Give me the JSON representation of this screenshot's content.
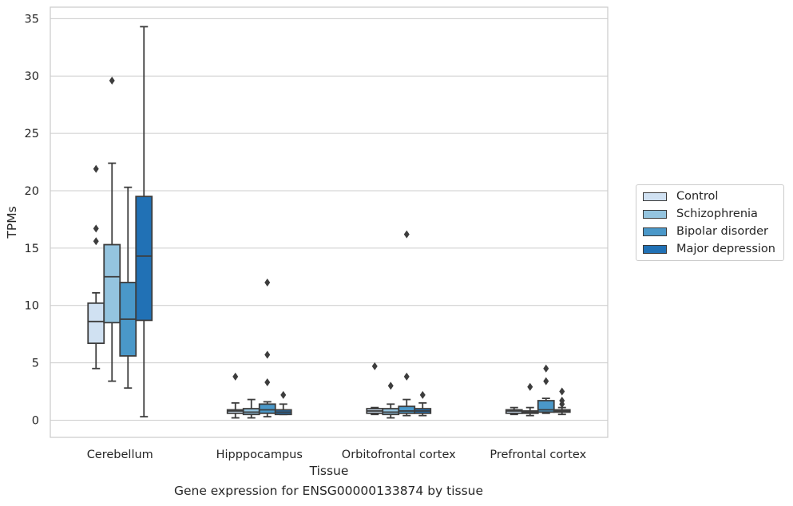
{
  "caption": "Gene expression for ENSG00000133874 by tissue",
  "chart_data": {
    "type": "box",
    "xlabel": "Tissue",
    "ylabel": "TPMs",
    "ylim": [
      -1.5,
      36
    ],
    "yticks": [
      0,
      5,
      10,
      15,
      20,
      25,
      30,
      35
    ],
    "grid": "horizontal",
    "legend_position": "right",
    "categories": [
      "Cerebellum",
      "Hipppocampus",
      "Orbitofrontal cortex",
      "Prefrontal cortex"
    ],
    "series": [
      {
        "name": "Control",
        "color": "#d0e1f2",
        "boxes": [
          {
            "whislo": 4.5,
            "q1": 6.7,
            "med": 8.6,
            "q3": 10.2,
            "whishi": 11.1,
            "fliers": [
              15.6,
              16.7,
              21.9
            ]
          },
          {
            "whislo": 0.2,
            "q1": 0.6,
            "med": 0.8,
            "q3": 0.9,
            "whishi": 1.5,
            "fliers": [
              3.8
            ]
          },
          {
            "whislo": 0.5,
            "q1": 0.6,
            "med": 0.8,
            "q3": 1.0,
            "whishi": 1.1,
            "fliers": [
              4.7
            ]
          },
          {
            "whislo": 0.5,
            "q1": 0.6,
            "med": 0.8,
            "q3": 0.9,
            "whishi": 1.1,
            "fliers": []
          }
        ]
      },
      {
        "name": "Schizophrenia",
        "color": "#94c4df",
        "boxes": [
          {
            "whislo": 3.4,
            "q1": 8.5,
            "med": 12.5,
            "q3": 15.3,
            "whishi": 22.4,
            "fliers": [
              29.6
            ]
          },
          {
            "whislo": 0.2,
            "q1": 0.5,
            "med": 0.7,
            "q3": 1.0,
            "whishi": 1.8,
            "fliers": []
          },
          {
            "whislo": 0.2,
            "q1": 0.5,
            "med": 0.7,
            "q3": 1.0,
            "whishi": 1.4,
            "fliers": [
              3.0
            ]
          },
          {
            "whislo": 0.4,
            "q1": 0.6,
            "med": 0.7,
            "q3": 0.8,
            "whishi": 1.1,
            "fliers": [
              2.9
            ]
          }
        ]
      },
      {
        "name": "Bipolar disorder",
        "color": "#4a98c9",
        "boxes": [
          {
            "whislo": 2.8,
            "q1": 5.6,
            "med": 8.8,
            "q3": 12.0,
            "whishi": 20.3,
            "fliers": []
          },
          {
            "whislo": 0.3,
            "q1": 0.6,
            "med": 0.9,
            "q3": 1.4,
            "whishi": 1.6,
            "fliers": [
              3.3,
              5.7,
              12.0
            ]
          },
          {
            "whislo": 0.4,
            "q1": 0.6,
            "med": 0.8,
            "q3": 1.2,
            "whishi": 1.8,
            "fliers": [
              3.8,
              16.2
            ]
          },
          {
            "whislo": 0.6,
            "q1": 0.7,
            "med": 0.9,
            "q3": 1.7,
            "whishi": 1.9,
            "fliers": [
              3.4,
              4.5
            ]
          }
        ]
      },
      {
        "name": "Major depression",
        "color": "#2171b5",
        "boxes": [
          {
            "whislo": 0.3,
            "q1": 8.7,
            "med": 14.3,
            "q3": 19.5,
            "whishi": 34.3,
            "fliers": []
          },
          {
            "whislo": 0.5,
            "q1": 0.5,
            "med": 0.7,
            "q3": 0.9,
            "whishi": 1.4,
            "fliers": [
              2.2
            ]
          },
          {
            "whislo": 0.4,
            "q1": 0.6,
            "med": 0.8,
            "q3": 1.0,
            "whishi": 1.5,
            "fliers": [
              2.2
            ]
          },
          {
            "whislo": 0.5,
            "q1": 0.7,
            "med": 0.8,
            "q3": 0.9,
            "whishi": 1.1,
            "fliers": [
              1.4,
              1.7,
              2.5
            ]
          }
        ]
      }
    ]
  }
}
